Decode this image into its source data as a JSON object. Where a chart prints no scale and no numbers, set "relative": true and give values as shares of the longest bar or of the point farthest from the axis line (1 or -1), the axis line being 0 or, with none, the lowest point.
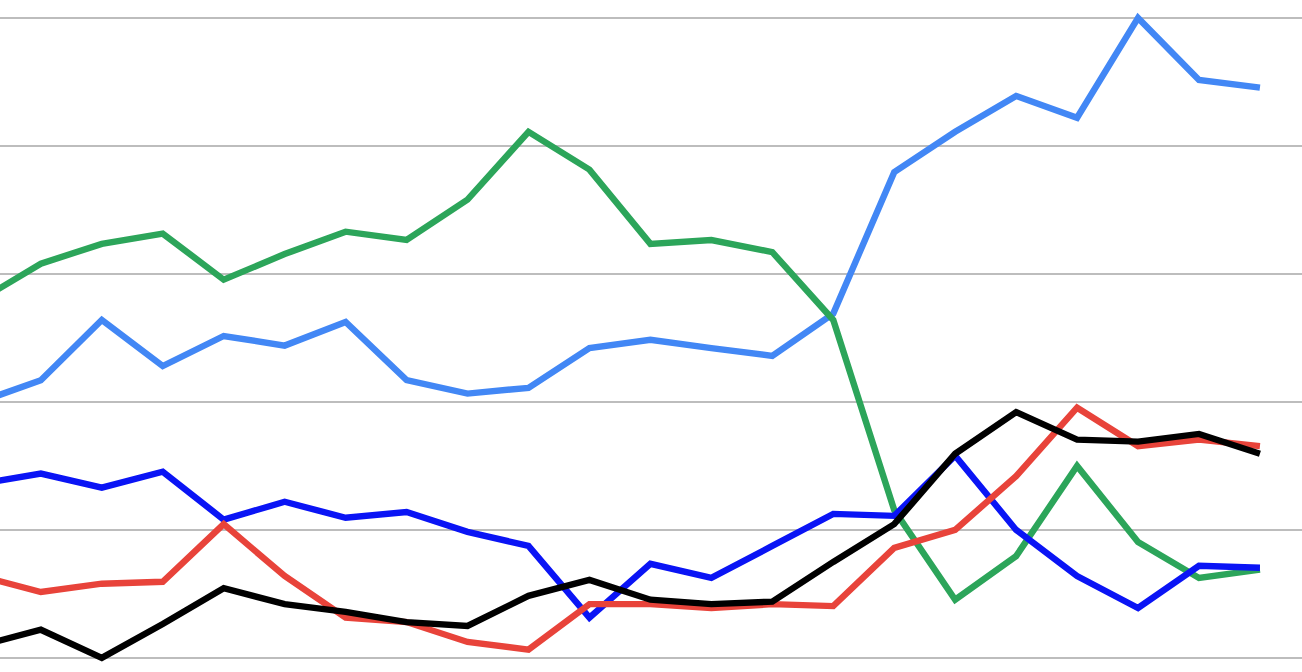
{
  "chart_data": {
    "type": "line",
    "relative": true,
    "grid": "y",
    "marker": "none",
    "line_style": "solid",
    "categories": [
      null,
      null,
      null,
      null,
      null,
      null,
      null,
      null,
      null,
      null,
      null,
      null,
      null,
      null,
      null,
      null,
      null,
      null,
      null,
      null,
      null,
      null
    ],
    "series": [
      {
        "color": "#4287f5",
        "values": [
          0.4,
          0.434,
          0.528,
          0.456,
          0.503,
          0.488,
          0.525,
          0.434,
          0.413,
          0.422,
          0.484,
          0.497,
          0.484,
          0.472,
          0.538,
          0.759,
          0.822,
          0.878,
          0.844,
          1,
          0.903,
          0.891
        ]
      },
      {
        "color": "#2ca55a",
        "values": [
          0.559,
          0.616,
          0.647,
          0.663,
          0.591,
          0.631,
          0.666,
          0.653,
          0.716,
          0.822,
          0.763,
          0.647,
          0.653,
          0.634,
          0.528,
          0.231,
          0.091,
          0.159,
          0.3,
          0.181,
          0.125,
          0.138
        ]
      },
      {
        "color": "#0a14f5",
        "values": [
          0.272,
          0.288,
          0.266,
          0.291,
          0.216,
          0.244,
          0.219,
          0.228,
          0.197,
          0.175,
          0.063,
          0.147,
          0.125,
          0.175,
          0.225,
          0.222,
          0.316,
          0.2,
          0.128,
          0.078,
          0.144,
          0.141
        ]
      },
      {
        "color": "#e8433a",
        "values": [
          0.128,
          0.103,
          0.116,
          0.119,
          0.209,
          0.128,
          0.063,
          0.056,
          0.025,
          0.013,
          0.084,
          0.084,
          0.078,
          0.084,
          0.081,
          0.172,
          0.2,
          0.284,
          0.391,
          0.331,
          0.341,
          0.331
        ]
      },
      {
        "color": "#000000",
        "values": [
          0.019,
          0.044,
          0,
          0.053,
          0.109,
          0.084,
          0.072,
          0.056,
          0.05,
          0.097,
          0.122,
          0.091,
          0.084,
          0.088,
          0.15,
          0.209,
          0.319,
          0.384,
          0.341,
          0.338,
          0.35,
          0.319
        ]
      }
    ]
  }
}
